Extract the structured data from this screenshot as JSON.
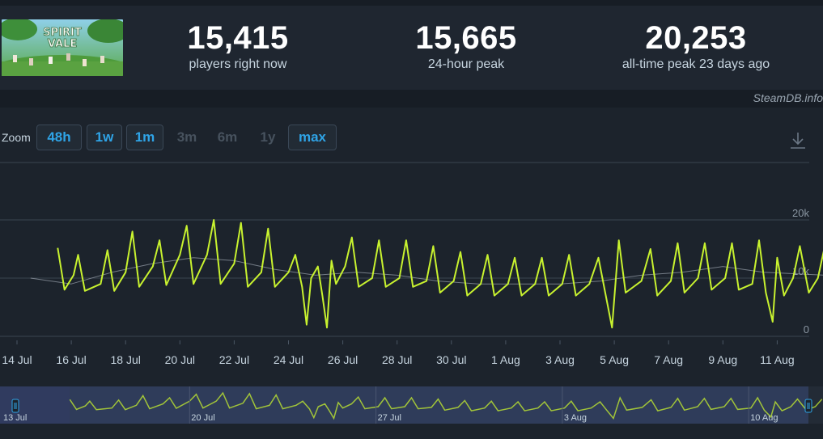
{
  "header": {
    "game_logo_icon": "spirit-vale-logo",
    "logo_text_line1": "SPIRIT",
    "logo_text_line2": "VALE",
    "stats": [
      {
        "value": "15,415",
        "label": "players right now"
      },
      {
        "value": "15,665",
        "label": "24-hour peak"
      },
      {
        "value": "20,253",
        "label": "all-time peak 23 days ago"
      }
    ]
  },
  "watermark": "SteamDB.info",
  "zoom": {
    "label": "Zoom",
    "buttons": [
      {
        "label": "48h",
        "enabled": true
      },
      {
        "label": "1w",
        "enabled": true
      },
      {
        "label": "1m",
        "enabled": true
      },
      {
        "label": "3m",
        "enabled": false
      },
      {
        "label": "6m",
        "enabled": false
      },
      {
        "label": "1y",
        "enabled": false
      },
      {
        "label": "max",
        "enabled": true
      }
    ]
  },
  "download_icon": "download-icon",
  "colors": {
    "players_line": "#c8f22f",
    "average_line": "#9aa3ad",
    "navigator_fill": "#3a4a78",
    "navigator_handle": "#2fa4e7"
  },
  "chart_data": {
    "type": "line",
    "xlabel": "",
    "ylabel": "",
    "ylim": [
      0,
      20000
    ],
    "yticks": [
      {
        "value": 0,
        "label": "0"
      },
      {
        "value": 10000,
        "label": "10k"
      },
      {
        "value": 20000,
        "label": "20k"
      }
    ],
    "xticks": [
      {
        "day": "2024-07-14",
        "label": "14 Jul"
      },
      {
        "day": "2024-07-16",
        "label": "16 Jul"
      },
      {
        "day": "2024-07-18",
        "label": "18 Jul"
      },
      {
        "day": "2024-07-20",
        "label": "20 Jul"
      },
      {
        "day": "2024-07-22",
        "label": "22 Jul"
      },
      {
        "day": "2024-07-24",
        "label": "24 Jul"
      },
      {
        "day": "2024-07-26",
        "label": "26 Jul"
      },
      {
        "day": "2024-07-28",
        "label": "28 Jul"
      },
      {
        "day": "2024-07-30",
        "label": "30 Jul"
      },
      {
        "day": "2024-08-01",
        "label": "1 Aug"
      },
      {
        "day": "2024-08-03",
        "label": "3 Aug"
      },
      {
        "day": "2024-08-05",
        "label": "5 Aug"
      },
      {
        "day": "2024-08-07",
        "label": "7 Aug"
      },
      {
        "day": "2024-08-09",
        "label": "9 Aug"
      },
      {
        "day": "2024-08-11",
        "label": "11 Aug"
      }
    ],
    "grid": true,
    "series": [
      {
        "values": [
          [
            "2024-07-15 12:00",
            15200
          ],
          [
            "2024-07-15 18:00",
            8000
          ],
          [
            "2024-07-16 02:00",
            10500
          ],
          [
            "2024-07-16 06:00",
            14000
          ],
          [
            "2024-07-16 12:00",
            7800
          ],
          [
            "2024-07-17 02:00",
            9000
          ],
          [
            "2024-07-17 08:00",
            14800
          ],
          [
            "2024-07-17 14:00",
            7800
          ],
          [
            "2024-07-18 00:00",
            11000
          ],
          [
            "2024-07-18 06:00",
            18000
          ],
          [
            "2024-07-18 12:00",
            8500
          ],
          [
            "2024-07-19 00:00",
            12000
          ],
          [
            "2024-07-19 06:00",
            16500
          ],
          [
            "2024-07-19 12:00",
            8800
          ],
          [
            "2024-07-20 00:00",
            14000
          ],
          [
            "2024-07-20 06:00",
            19000
          ],
          [
            "2024-07-20 12:00",
            9000
          ],
          [
            "2024-07-21 00:00",
            14000
          ],
          [
            "2024-07-21 06:00",
            20000
          ],
          [
            "2024-07-21 12:00",
            9000
          ],
          [
            "2024-07-22 00:00",
            12500
          ],
          [
            "2024-07-22 06:00",
            19500
          ],
          [
            "2024-07-22 12:00",
            8500
          ],
          [
            "2024-07-23 00:00",
            11000
          ],
          [
            "2024-07-23 06:00",
            18500
          ],
          [
            "2024-07-23 12:00",
            8500
          ],
          [
            "2024-07-24 00:00",
            11000
          ],
          [
            "2024-07-24 06:00",
            14000
          ],
          [
            "2024-07-24 12:00",
            8500
          ],
          [
            "2024-07-24 16:00",
            2000
          ],
          [
            "2024-07-24 20:00",
            10000
          ],
          [
            "2024-07-25 02:00",
            12000
          ],
          [
            "2024-07-25 06:00",
            7000
          ],
          [
            "2024-07-25 10:00",
            1500
          ],
          [
            "2024-07-25 14:00",
            13000
          ],
          [
            "2024-07-25 18:00",
            9000
          ],
          [
            "2024-07-26 02:00",
            12000
          ],
          [
            "2024-07-26 08:00",
            17000
          ],
          [
            "2024-07-26 14:00",
            8500
          ],
          [
            "2024-07-27 02:00",
            10000
          ],
          [
            "2024-07-27 08:00",
            16500
          ],
          [
            "2024-07-27 14:00",
            8500
          ],
          [
            "2024-07-28 02:00",
            10000
          ],
          [
            "2024-07-28 08:00",
            16500
          ],
          [
            "2024-07-28 14:00",
            8500
          ],
          [
            "2024-07-29 02:00",
            9500
          ],
          [
            "2024-07-29 08:00",
            15500
          ],
          [
            "2024-07-29 14:00",
            7500
          ],
          [
            "2024-07-30 02:00",
            9500
          ],
          [
            "2024-07-30 08:00",
            14500
          ],
          [
            "2024-07-30 14:00",
            7000
          ],
          [
            "2024-07-31 02:00",
            9000
          ],
          [
            "2024-07-31 08:00",
            14000
          ],
          [
            "2024-07-31 14:00",
            7000
          ],
          [
            "2024-08-01 02:00",
            9000
          ],
          [
            "2024-08-01 08:00",
            13500
          ],
          [
            "2024-08-01 14:00",
            7000
          ],
          [
            "2024-08-02 02:00",
            9000
          ],
          [
            "2024-08-02 08:00",
            13500
          ],
          [
            "2024-08-02 14:00",
            7000
          ],
          [
            "2024-08-03 02:00",
            9000
          ],
          [
            "2024-08-03 08:00",
            14000
          ],
          [
            "2024-08-03 14:00",
            7000
          ],
          [
            "2024-08-04 02:00",
            9000
          ],
          [
            "2024-08-04 10:00",
            13500
          ],
          [
            "2024-08-04 16:00",
            7500
          ],
          [
            "2024-08-04 22:00",
            1500
          ],
          [
            "2024-08-05 04:00",
            16500
          ],
          [
            "2024-08-05 10:00",
            7500
          ],
          [
            "2024-08-06 00:00",
            9500
          ],
          [
            "2024-08-06 08:00",
            15000
          ],
          [
            "2024-08-06 14:00",
            7000
          ],
          [
            "2024-08-07 02:00",
            9500
          ],
          [
            "2024-08-07 08:00",
            16000
          ],
          [
            "2024-08-07 14:00",
            7500
          ],
          [
            "2024-08-08 02:00",
            10000
          ],
          [
            "2024-08-08 08:00",
            16000
          ],
          [
            "2024-08-08 14:00",
            8000
          ],
          [
            "2024-08-09 02:00",
            10000
          ],
          [
            "2024-08-09 08:00",
            16000
          ],
          [
            "2024-08-09 14:00",
            8000
          ],
          [
            "2024-08-10 02:00",
            9000
          ],
          [
            "2024-08-10 08:00",
            16500
          ],
          [
            "2024-08-10 14:00",
            7500
          ],
          [
            "2024-08-10 20:00",
            2500
          ],
          [
            "2024-08-11 00:00",
            13500
          ],
          [
            "2024-08-11 06:00",
            7000
          ],
          [
            "2024-08-11 14:00",
            10000
          ],
          [
            "2024-08-11 20:00",
            15500
          ],
          [
            "2024-08-12 04:00",
            7500
          ],
          [
            "2024-08-12 12:00",
            10000
          ],
          [
            "2024-08-12 18:00",
            15415
          ]
        ]
      },
      {
        "values": [
          [
            "2024-07-14 12:00",
            10000
          ],
          [
            "2024-07-16 00:00",
            9000
          ],
          [
            "2024-07-17 12:00",
            11000
          ],
          [
            "2024-07-19 00:00",
            12500
          ],
          [
            "2024-07-20 12:00",
            13500
          ],
          [
            "2024-07-22 00:00",
            13000
          ],
          [
            "2024-07-23 12:00",
            11500
          ],
          [
            "2024-07-25 00:00",
            10500
          ],
          [
            "2024-07-26 12:00",
            11000
          ],
          [
            "2024-07-28 00:00",
            10500
          ],
          [
            "2024-07-29 12:00",
            9500
          ],
          [
            "2024-07-31 00:00",
            9000
          ],
          [
            "2024-08-01 12:00",
            9000
          ],
          [
            "2024-08-03 00:00",
            9000
          ],
          [
            "2024-08-04 12:00",
            9500
          ],
          [
            "2024-08-06 00:00",
            10500
          ],
          [
            "2024-08-07 12:00",
            11000
          ],
          [
            "2024-08-09 00:00",
            12000
          ],
          [
            "2024-08-10 12:00",
            11000
          ],
          [
            "2024-08-12 18:00",
            10500
          ]
        ]
      }
    ]
  },
  "navigator": {
    "range_start_label": "13 Jul",
    "ticks": [
      {
        "day": "2024-07-20",
        "label": "20 Jul"
      },
      {
        "day": "2024-07-27",
        "label": "27 Jul"
      },
      {
        "day": "2024-08-03",
        "label": "3 Aug"
      },
      {
        "day": "2024-08-10",
        "label": "10 Aug"
      }
    ],
    "left_handle_icon": "range-handle-icon",
    "right_handle_icon": "range-handle-icon"
  }
}
